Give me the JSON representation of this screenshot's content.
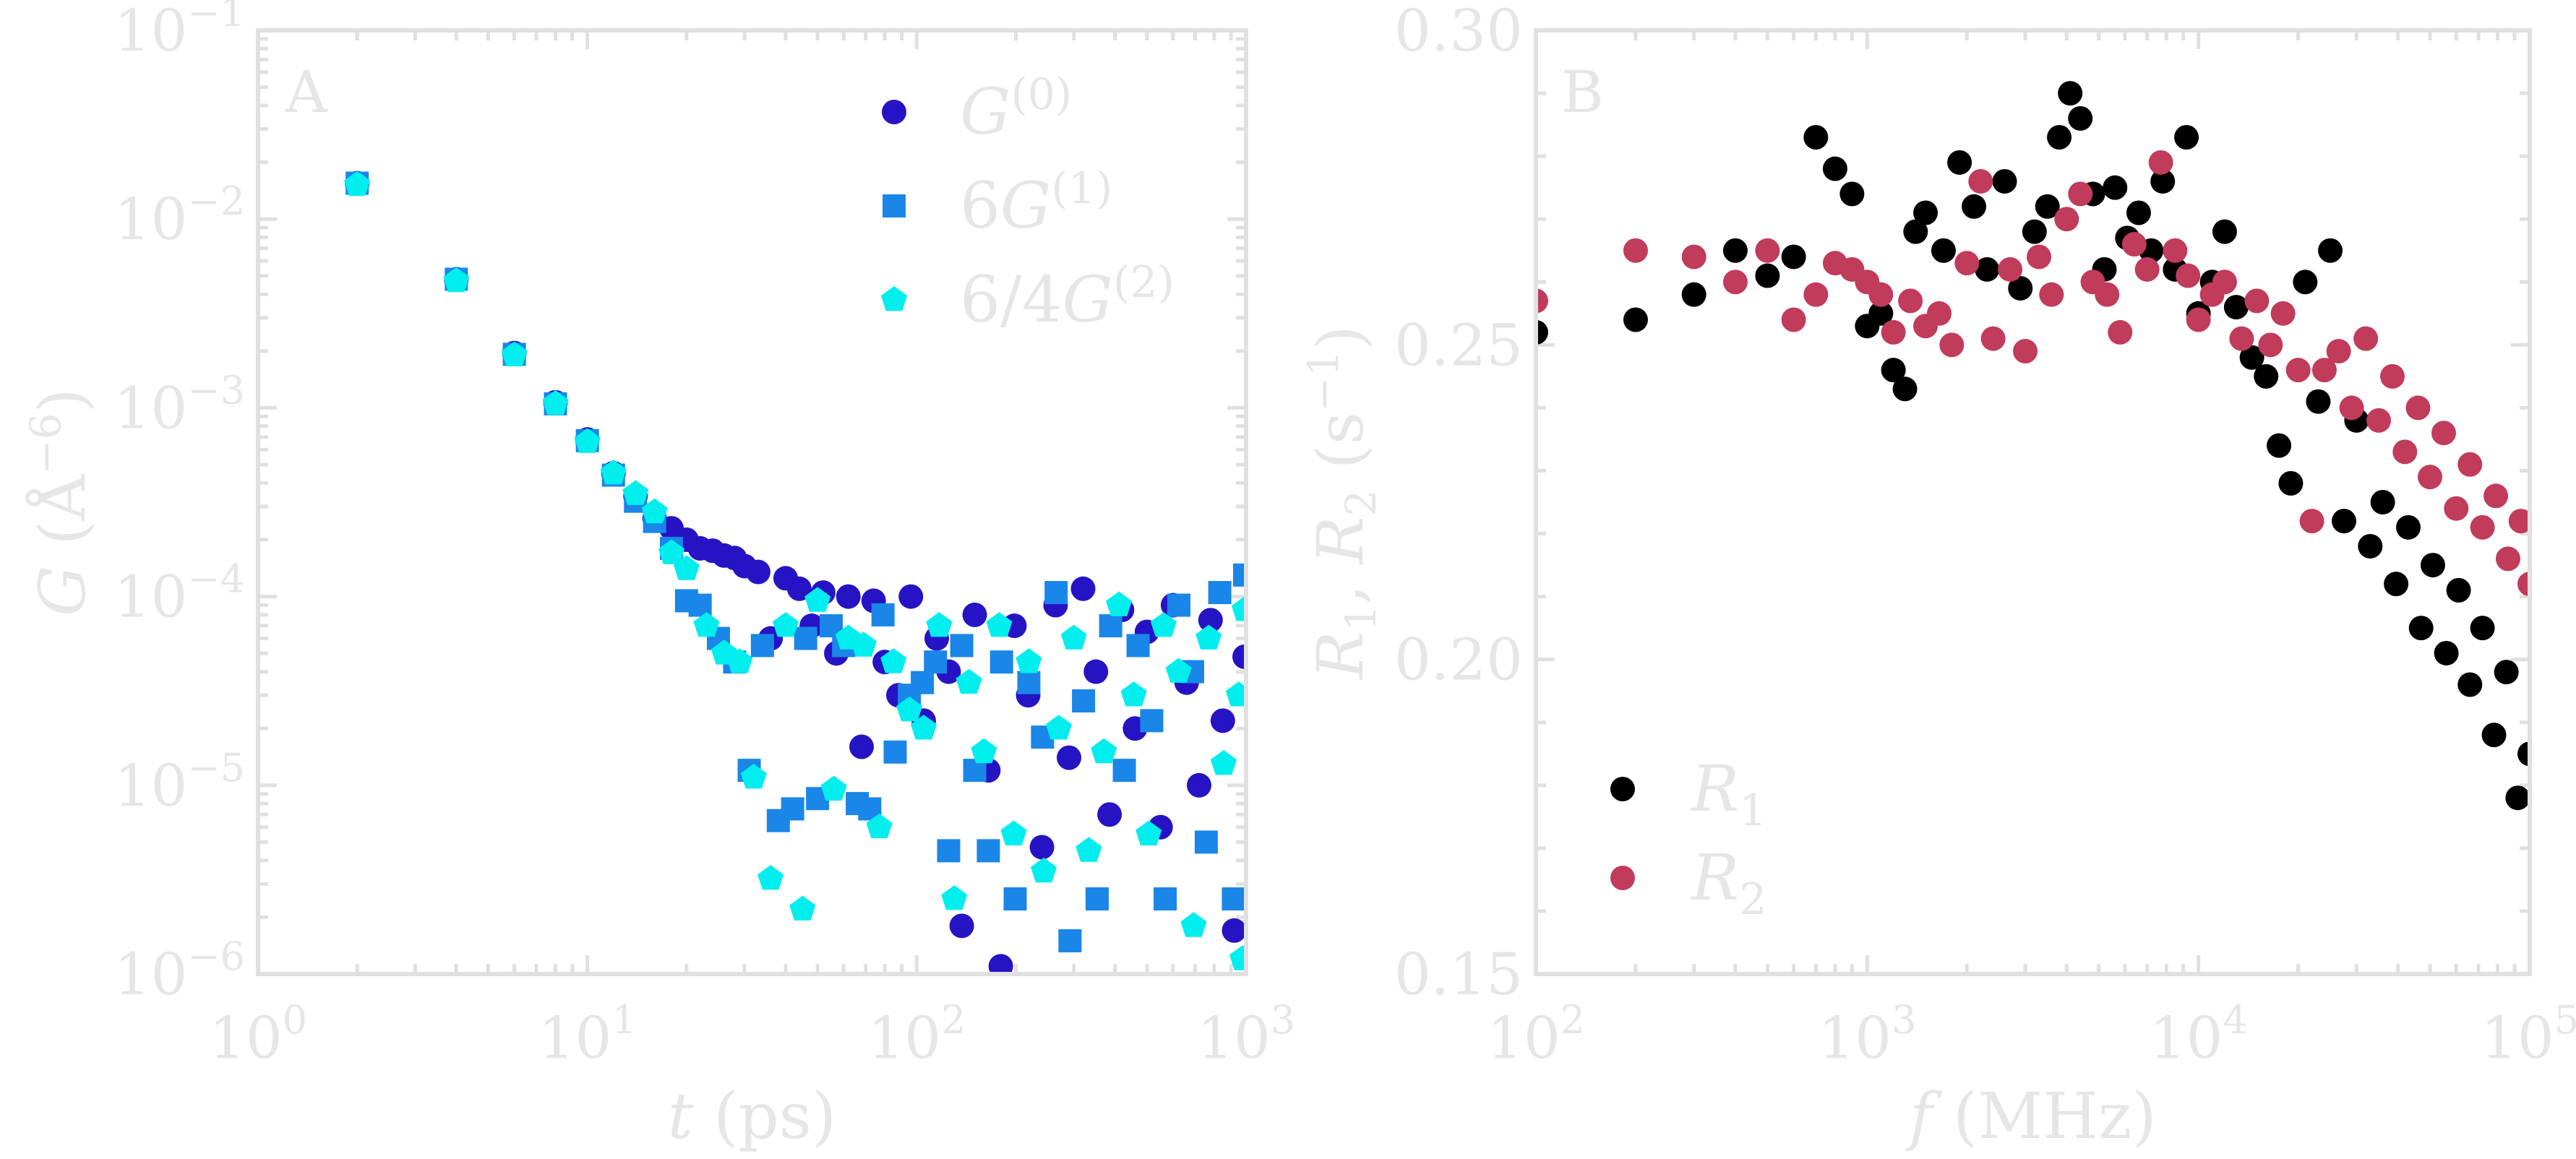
{
  "chart_data": [
    {
      "type": "scatter",
      "panel_label": "A",
      "xlabel_var": "t",
      "xlabel_unit": "(ps)",
      "ylabel_var": "G",
      "ylabel_unit": "(Å",
      "ylabel_unit_exp": "−6",
      "ylabel_unit_close": ")",
      "xscale": "log",
      "yscale": "log",
      "xlim": [
        1,
        1000
      ],
      "ylim": [
        1e-06,
        0.1
      ],
      "xticks": [
        {
          "base": "10",
          "exp": "0",
          "value": 1
        },
        {
          "base": "10",
          "exp": "1",
          "value": 10
        },
        {
          "base": "10",
          "exp": "2",
          "value": 100
        },
        {
          "base": "10",
          "exp": "3",
          "value": 1000
        }
      ],
      "yticks": [
        {
          "base": "10",
          "exp": "−1",
          "value": 0.1
        },
        {
          "base": "10",
          "exp": "−2",
          "value": 0.01
        },
        {
          "base": "10",
          "exp": "−3",
          "value": 0.001
        },
        {
          "base": "10",
          "exp": "−4",
          "value": 0.0001
        },
        {
          "base": "10",
          "exp": "−5",
          "value": 1e-05
        },
        {
          "base": "10",
          "exp": "−6",
          "value": 1e-06
        }
      ],
      "legend_position": "upper-right",
      "series": [
        {
          "name_main": "G",
          "name_prefix": "",
          "name_sup": "(0)",
          "marker": "circle",
          "color": "#2614c4",
          "x": [
            2,
            4,
            6,
            8,
            10,
            12,
            14,
            16,
            18,
            20,
            22,
            24,
            26,
            28,
            30,
            33,
            36,
            40,
            44,
            48,
            52,
            57,
            62,
            68,
            74,
            80,
            88,
            96,
            105,
            115,
            125,
            137,
            150,
            165,
            180,
            198,
            218,
            240,
            264,
            290,
            320,
            350,
            385,
            420,
            460,
            500,
            550,
            600,
            660,
            720,
            780,
            850,
            920,
            990
          ],
          "y": [
            0.0155,
            0.0048,
            0.00195,
            0.00107,
            0.00068,
            0.00045,
            0.00034,
            0.00026,
            0.00023,
            0.0002,
            0.00018,
            0.000175,
            0.000165,
            0.00016,
            0.000145,
            0.000135,
            6e-05,
            0.000125,
            0.00011,
            7e-05,
            0.000105,
            5e-05,
            0.0001,
            1.6e-05,
            9.5e-05,
            4.5e-05,
            3e-05,
            0.0001,
            2.2e-05,
            6e-05,
            4e-05,
            1.8e-06,
            8e-05,
            1.2e-05,
            1.1e-06,
            7e-05,
            3e-05,
            4.7e-06,
            9e-05,
            1.4e-05,
            0.00011,
            4e-05,
            7e-06,
            8.5e-05,
            2e-05,
            6.5e-05,
            6e-06,
            9e-05,
            3.5e-05,
            1e-05,
            7.5e-05,
            2.2e-05,
            1.7e-06,
            4.8e-05
          ]
        },
        {
          "name_main": "G",
          "name_prefix": "6",
          "name_sup": "(1)",
          "marker": "square",
          "color": "#1a86e8",
          "x": [
            2,
            4,
            6,
            8,
            10,
            12,
            14,
            16,
            18,
            20,
            22,
            25,
            28,
            31,
            34,
            38,
            42,
            46,
            50,
            55,
            60,
            66,
            72,
            79,
            86,
            95,
            104,
            114,
            125,
            137,
            150,
            165,
            181,
            199,
            219,
            241,
            265,
            292,
            321,
            353,
            388,
            427,
            470,
            517,
            568,
            625,
            688,
            757,
            832,
            915,
            990
          ],
          "y": [
            0.0155,
            0.0048,
            0.00192,
            0.00105,
            0.00067,
            0.00044,
            0.00032,
            0.00025,
            0.00018,
            9.5e-05,
            9e-05,
            6e-05,
            4.5e-05,
            1.2e-05,
            5.5e-05,
            6.5e-06,
            7.5e-06,
            6e-05,
            8.5e-06,
            7e-05,
            5.5e-05,
            8e-06,
            7.5e-06,
            8e-05,
            1.5e-05,
            3e-05,
            3.5e-05,
            4.5e-05,
            4.5e-06,
            5.5e-05,
            1.2e-05,
            4.5e-06,
            4.5e-05,
            2.5e-06,
            3.5e-05,
            1.8e-05,
            0.000105,
            1.5e-06,
            2.8e-05,
            2.5e-06,
            7e-05,
            1.2e-05,
            5.5e-05,
            2.2e-05,
            2.5e-06,
            9e-05,
            4e-05,
            5e-06,
            0.000105,
            2.5e-06,
            0.00013
          ]
        },
        {
          "name_main": "G",
          "name_prefix": "6/4",
          "name_sup": "(2)",
          "marker": "pentagon",
          "color": "#00eeee",
          "x": [
            2,
            4,
            6,
            8,
            10,
            12,
            14,
            16,
            18,
            20,
            23,
            26,
            29,
            32,
            36,
            40,
            45,
            50,
            56,
            62,
            69,
            77,
            85,
            95,
            105,
            117,
            130,
            144,
            160,
            178,
            197,
            219,
            243,
            270,
            300,
            333,
            370,
            411,
            456,
            506,
            562,
            624,
            693,
            770,
            855,
            950,
            975,
            990
          ],
          "y": [
            0.0152,
            0.0047,
            0.0019,
            0.00105,
            0.00066,
            0.00045,
            0.00035,
            0.00028,
            0.00017,
            0.00014,
            7e-05,
            5e-05,
            4.5e-05,
            1.1e-05,
            3.2e-06,
            7e-05,
            2.2e-06,
            9.5e-05,
            9.5e-06,
            6e-05,
            5.5e-05,
            6e-06,
            4.5e-05,
            2.5e-05,
            2e-05,
            7e-05,
            2.5e-06,
            3.5e-05,
            1.5e-05,
            7e-05,
            5.5e-06,
            4.5e-05,
            3.5e-06,
            2e-05,
            6e-05,
            4.5e-06,
            1.5e-05,
            9e-05,
            3e-05,
            5.5e-06,
            7e-05,
            4e-05,
            1.8e-06,
            6e-05,
            1.3e-05,
            3e-05,
            1.2e-06,
            8.5e-05
          ]
        }
      ]
    },
    {
      "type": "scatter",
      "panel_label": "B",
      "xlabel_var": "f",
      "xlabel_unit": "(MHz)",
      "ylabel_var": "R",
      "ylabel_sub1": "1",
      "ylabel_sep": ", ",
      "ylabel_var2": "R",
      "ylabel_sub2": "2",
      "ylabel_unit": "(s",
      "ylabel_unit_exp": "−1",
      "ylabel_unit_close": ")",
      "xscale": "log",
      "yscale": "linear",
      "xlim": [
        100,
        100000
      ],
      "ylim": [
        0.15,
        0.3
      ],
      "xticks": [
        {
          "base": "10",
          "exp": "2",
          "value": 100
        },
        {
          "base": "10",
          "exp": "3",
          "value": 1000
        },
        {
          "base": "10",
          "exp": "4",
          "value": 10000
        },
        {
          "base": "10",
          "exp": "5",
          "value": 100000
        }
      ],
      "yticks": [
        {
          "label": "0.30",
          "value": 0.3
        },
        {
          "label": "0.25",
          "value": 0.25
        },
        {
          "label": "0.20",
          "value": 0.2
        },
        {
          "label": "0.15",
          "value": 0.15
        }
      ],
      "legend_position": "lower-left",
      "series": [
        {
          "name_main": "R",
          "name_sub": "1",
          "marker": "circle",
          "color": "#000000",
          "x": [
            100,
            200,
            300,
            400,
            500,
            600,
            700,
            800,
            900,
            1000,
            1100,
            1200,
            1300,
            1400,
            1500,
            1700,
            1900,
            2100,
            2300,
            2600,
            2900,
            3200,
            3500,
            3800,
            4100,
            4400,
            4800,
            5200,
            5600,
            6100,
            6600,
            7200,
            7800,
            8500,
            9200,
            10000,
            11000,
            12000,
            13000,
            14500,
            16000,
            17500,
            19000,
            21000,
            23000,
            25000,
            27500,
            30000,
            33000,
            36000,
            39500,
            43000,
            47000,
            51000,
            56000,
            61000,
            66000,
            72000,
            78000,
            85000,
            92000,
            100000
          ],
          "y": [
            0.252,
            0.254,
            0.258,
            0.265,
            0.261,
            0.264,
            0.283,
            0.278,
            0.274,
            0.253,
            0.255,
            0.246,
            0.243,
            0.268,
            0.271,
            0.265,
            0.279,
            0.272,
            0.262,
            0.276,
            0.259,
            0.268,
            0.272,
            0.283,
            0.29,
            0.286,
            0.274,
            0.262,
            0.275,
            0.267,
            0.271,
            0.265,
            0.276,
            0.262,
            0.283,
            0.255,
            0.26,
            0.268,
            0.256,
            0.248,
            0.245,
            0.234,
            0.228,
            0.26,
            0.241,
            0.265,
            0.222,
            0.238,
            0.218,
            0.225,
            0.212,
            0.221,
            0.205,
            0.215,
            0.201,
            0.211,
            0.196,
            0.205,
            0.188,
            0.198,
            0.178,
            0.185
          ]
        },
        {
          "name_main": "R",
          "name_sub": "2",
          "marker": "circle",
          "color": "#c13b5a",
          "x": [
            100,
            200,
            300,
            400,
            500,
            600,
            700,
            800,
            900,
            1000,
            1100,
            1200,
            1350,
            1500,
            1650,
            1800,
            2000,
            2200,
            2400,
            2700,
            3000,
            3300,
            3600,
            4000,
            4400,
            4800,
            5300,
            5800,
            6400,
            7000,
            7700,
            8500,
            9300,
            10000,
            11000,
            12000,
            13500,
            15000,
            16500,
            18000,
            20000,
            22000,
            24000,
            26500,
            29000,
            32000,
            35000,
            38500,
            42000,
            46000,
            50000,
            55000,
            60000,
            66000,
            72000,
            79000,
            86000,
            94000,
            100000
          ],
          "y": [
            0.257,
            0.265,
            0.264,
            0.26,
            0.265,
            0.254,
            0.258,
            0.263,
            0.262,
            0.26,
            0.258,
            0.252,
            0.257,
            0.253,
            0.255,
            0.25,
            0.263,
            0.276,
            0.251,
            0.262,
            0.249,
            0.264,
            0.258,
            0.27,
            0.274,
            0.26,
            0.258,
            0.252,
            0.266,
            0.262,
            0.279,
            0.265,
            0.261,
            0.254,
            0.258,
            0.26,
            0.251,
            0.257,
            0.25,
            0.255,
            0.246,
            0.222,
            0.246,
            0.249,
            0.24,
            0.251,
            0.238,
            0.245,
            0.233,
            0.24,
            0.229,
            0.236,
            0.224,
            0.231,
            0.221,
            0.226,
            0.216,
            0.222,
            0.212
          ]
        }
      ]
    }
  ]
}
